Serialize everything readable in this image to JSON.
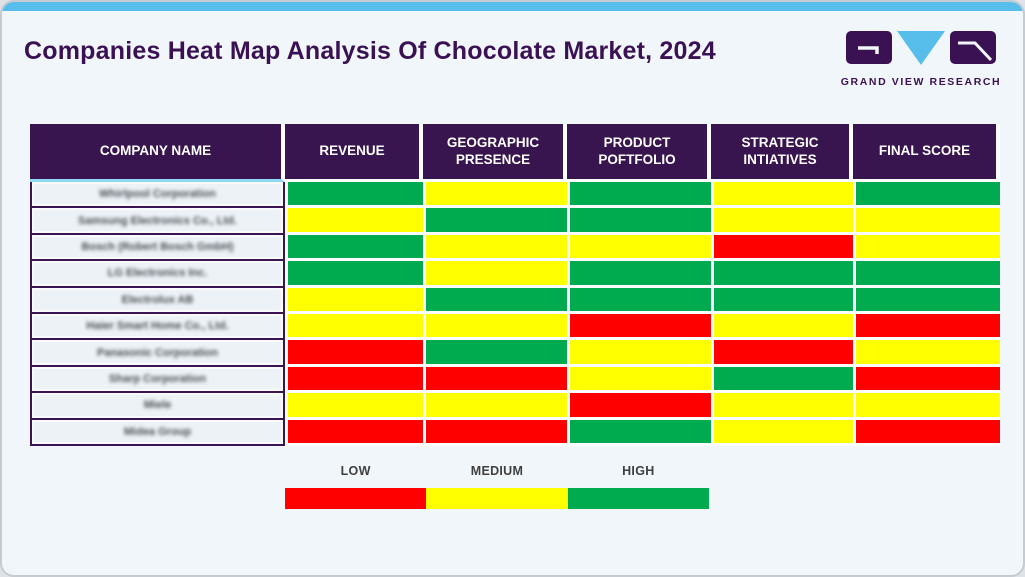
{
  "title": "Companies Heat Map Analysis Of Chocolate Market, 2024",
  "logo": {
    "brand": "GRAND VIEW RESEARCH"
  },
  "colors": {
    "low": "#ff0000",
    "medium": "#ffff00",
    "high": "#00ab50",
    "header_bg": "#38154e",
    "title_purple": "#3a1253",
    "accent_blue": "#57beec"
  },
  "table": {
    "columns": [
      "COMPANY NAME",
      "REVENUE",
      "GEOGRAPHIC PRESENCE",
      "PRODUCT POFTFOLIO",
      "STRATEGIC INTIATIVES",
      "FINAL SCORE"
    ],
    "rows": [
      {
        "company": "Whirlpool Corporation",
        "ratings": [
          "high",
          "medium",
          "high",
          "medium",
          "high"
        ]
      },
      {
        "company": "Samsung Electronics Co., Ltd.",
        "ratings": [
          "medium",
          "high",
          "high",
          "medium",
          "medium"
        ]
      },
      {
        "company": "Bosch (Robert Bosch GmbH)",
        "ratings": [
          "high",
          "medium",
          "medium",
          "low",
          "medium"
        ]
      },
      {
        "company": "LG Electronics Inc.",
        "ratings": [
          "high",
          "medium",
          "high",
          "high",
          "high"
        ]
      },
      {
        "company": "Electrolux AB",
        "ratings": [
          "medium",
          "high",
          "high",
          "high",
          "high"
        ]
      },
      {
        "company": "Haier Smart Home Co., Ltd.",
        "ratings": [
          "medium",
          "medium",
          "low",
          "medium",
          "low"
        ]
      },
      {
        "company": "Panasonic Corporation",
        "ratings": [
          "low",
          "high",
          "medium",
          "low",
          "medium"
        ]
      },
      {
        "company": "Sharp Corporation",
        "ratings": [
          "low",
          "low",
          "medium",
          "high",
          "low"
        ]
      },
      {
        "company": "Miele",
        "ratings": [
          "medium",
          "medium",
          "low",
          "medium",
          "medium"
        ]
      },
      {
        "company": "Midea Group",
        "ratings": [
          "low",
          "low",
          "high",
          "medium",
          "low"
        ]
      }
    ]
  },
  "legend": {
    "labels": [
      "LOW",
      "MEDIUM",
      "HIGH"
    ],
    "order": [
      "low",
      "medium",
      "high"
    ]
  },
  "chart_data": {
    "type": "heatmap",
    "title": "Companies Heat Map Analysis Of Chocolate Market, 2024",
    "columns": [
      "REVENUE",
      "GEOGRAPHIC PRESENCE",
      "PRODUCT POFTFOLIO",
      "STRATEGIC INTIATIVES",
      "FINAL SCORE"
    ],
    "rows": [
      "Whirlpool Corporation",
      "Samsung Electronics Co., Ltd.",
      "Bosch (Robert Bosch GmbH)",
      "LG Electronics Inc.",
      "Electrolux AB",
      "Haier Smart Home Co., Ltd.",
      "Panasonic Corporation",
      "Sharp Corporation",
      "Miele",
      "Midea Group"
    ],
    "values": [
      [
        "high",
        "medium",
        "high",
        "medium",
        "high"
      ],
      [
        "medium",
        "high",
        "high",
        "medium",
        "medium"
      ],
      [
        "high",
        "medium",
        "medium",
        "low",
        "medium"
      ],
      [
        "high",
        "medium",
        "high",
        "high",
        "high"
      ],
      [
        "medium",
        "high",
        "high",
        "high",
        "high"
      ],
      [
        "medium",
        "medium",
        "low",
        "medium",
        "low"
      ],
      [
        "low",
        "high",
        "medium",
        "low",
        "medium"
      ],
      [
        "low",
        "low",
        "medium",
        "high",
        "low"
      ],
      [
        "medium",
        "medium",
        "low",
        "medium",
        "medium"
      ],
      [
        "low",
        "low",
        "high",
        "medium",
        "low"
      ]
    ],
    "scale": {
      "low": "#ff0000",
      "medium": "#ffff00",
      "high": "#00ab50"
    },
    "legend_labels": [
      "LOW",
      "MEDIUM",
      "HIGH"
    ],
    "legend_position": "bottom"
  }
}
